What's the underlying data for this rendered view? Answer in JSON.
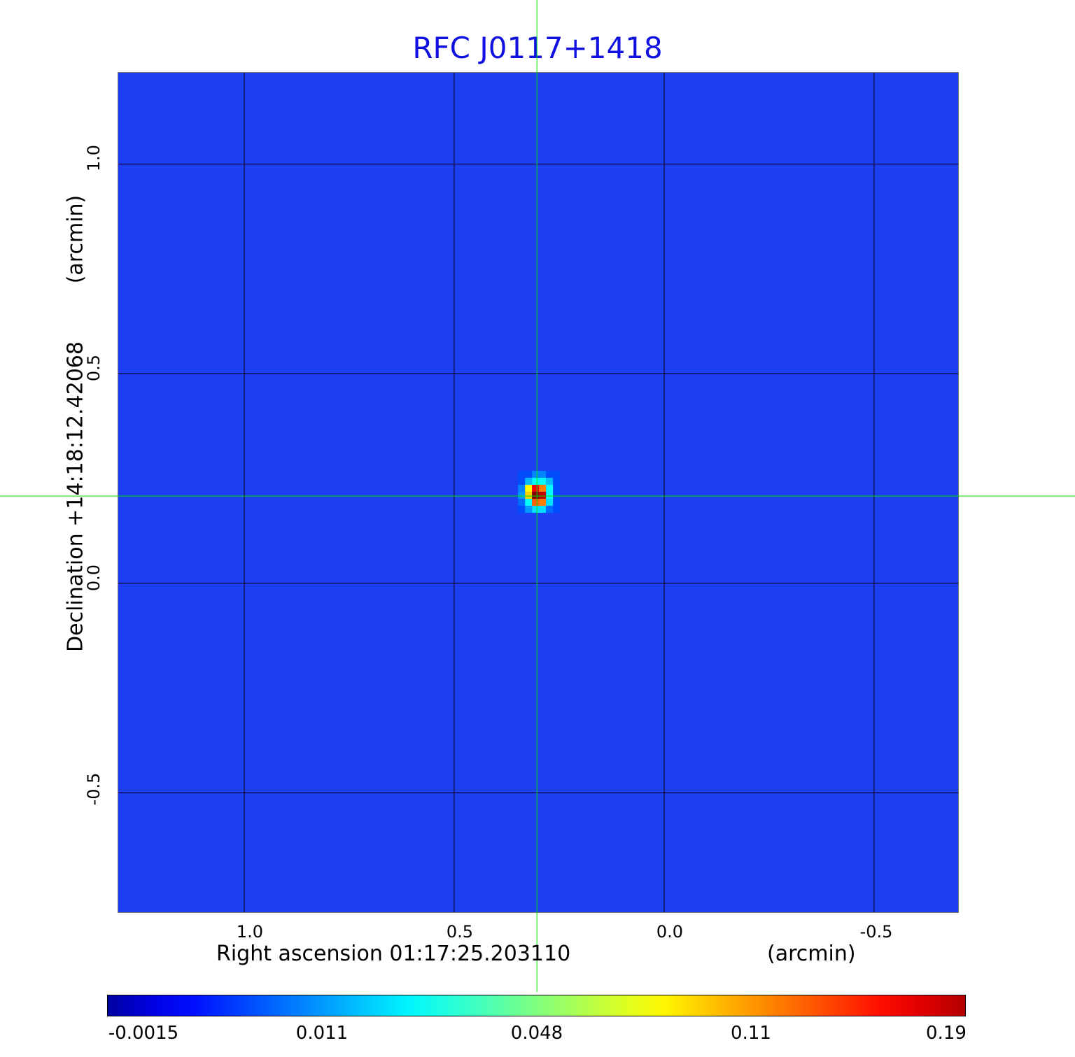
{
  "chart_data": {
    "type": "heatmap",
    "title": "RFC J0117+1418",
    "xlabel": "Right ascension  01:17:25.203110",
    "xlabel_unit": "(arcmin)",
    "ylabel": "Declination  +14:18:12.42068",
    "ylabel_unit": "(arcmin)",
    "xlim": [
      1.3,
      -0.7
    ],
    "ylim": [
      -0.785,
      1.218
    ],
    "grid": true,
    "x_ticks": [
      "1.0",
      "0.5",
      "0.0",
      "-0.5"
    ],
    "x_tick_values": [
      1.0,
      0.5,
      0.0,
      -0.5
    ],
    "y_ticks": [
      "1.0",
      "0.5",
      "0.0",
      "-0.5"
    ],
    "y_tick_values": [
      1.0,
      0.5,
      0.0,
      -0.5
    ],
    "crosshair": {
      "x": 0.303,
      "y": 0.208,
      "color": "#00e000"
    },
    "background_level": 0.0,
    "background_color": "#1c3ff2",
    "colormap": "jet",
    "colorbar": {
      "ticks": [
        "-0.0015",
        "0.011",
        "0.048",
        "0.11",
        "0.19"
      ],
      "tick_values": [
        -0.0015,
        0.011,
        0.048,
        0.11,
        0.19
      ],
      "placement": "bottom"
    },
    "source_pixels": [
      [
        0.005,
        0.008,
        0.012,
        0.012,
        0.008,
        0.003
      ],
      [
        0.008,
        0.02,
        0.03,
        0.03,
        0.02,
        0.005
      ],
      [
        0.012,
        0.08,
        0.15,
        0.11,
        0.03,
        0.005
      ],
      [
        0.015,
        0.09,
        0.19,
        0.17,
        0.03,
        0.0
      ],
      [
        0.01,
        0.03,
        0.12,
        0.11,
        0.025,
        0.003
      ],
      [
        0.005,
        0.015,
        0.025,
        0.025,
        0.01,
        0.002
      ]
    ]
  }
}
